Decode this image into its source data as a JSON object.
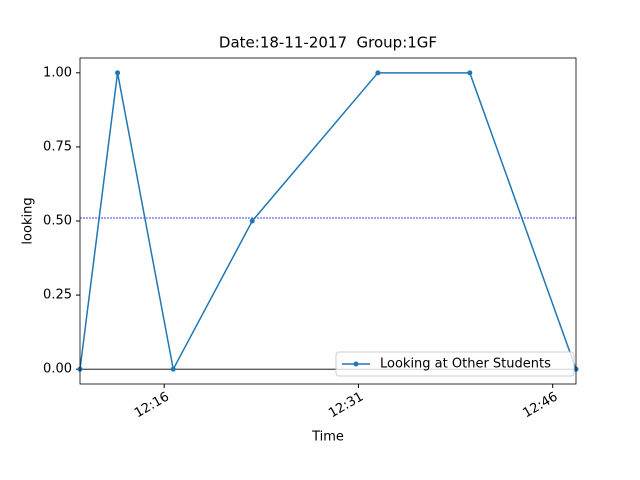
{
  "chart_data": {
    "type": "line",
    "title": "Date:18-11-2017  Group:1GF",
    "xlabel": "Time",
    "ylabel": "looking",
    "x": [
      729.5,
      732.4,
      736.7,
      742.8,
      752.5,
      759.6,
      767.8
    ],
    "series": [
      {
        "name": "Looking at Other Students",
        "color": "#1f77b4",
        "values": [
          0,
          1,
          0,
          0.5,
          1,
          1,
          0
        ]
      }
    ],
    "xlim": [
      729.5,
      767.8
    ],
    "xticks": [
      {
        "value": 736,
        "label": "12:16"
      },
      {
        "value": 751,
        "label": "12:31"
      },
      {
        "value": 766,
        "label": "12:46"
      }
    ],
    "ylim": [
      -0.05,
      1.05
    ],
    "yticks": [
      {
        "value": 0,
        "label": "0.00"
      },
      {
        "value": 0.25,
        "label": "0.25"
      },
      {
        "value": 0.5,
        "label": "0.50"
      },
      {
        "value": 0.75,
        "label": "0.75"
      },
      {
        "value": 1,
        "label": "1.00"
      }
    ],
    "reference_lines": [
      {
        "value": 0.51,
        "color": "#0000ff",
        "style": "dashed"
      },
      {
        "value": 0,
        "color": "#000000",
        "style": "solid"
      }
    ],
    "legend": "lower right"
  }
}
